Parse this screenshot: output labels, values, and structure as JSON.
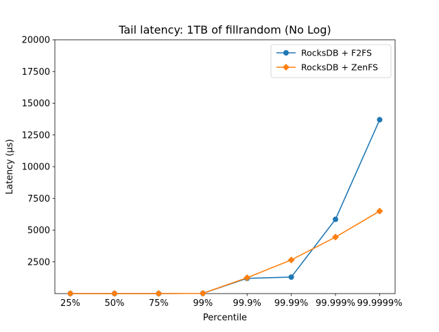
{
  "chart_data": {
    "type": "line",
    "title": "Tail latency: 1TB of fillrandom (No Log)",
    "xlabel": "Percentile",
    "ylabel": "Latency (µs)",
    "categories": [
      "25%",
      "50%",
      "75%",
      "99%",
      "99.9%",
      "99.99%",
      "99.999%",
      "99.9999%"
    ],
    "ylim": [
      0,
      20000
    ],
    "yticks": [
      2500,
      5000,
      7500,
      10000,
      12500,
      15000,
      17500,
      20000
    ],
    "grid": false,
    "legend_position": "top-right",
    "series": [
      {
        "name": "RocksDB + F2FS",
        "color": "#1f77b4",
        "marker": "circle",
        "values": [
          5,
          5,
          5,
          20,
          1200,
          1300,
          5850,
          13700
        ]
      },
      {
        "name": "RocksDB + ZenFS",
        "color": "#ff7f0e",
        "marker": "diamond",
        "values": [
          5,
          5,
          5,
          20,
          1250,
          2650,
          4450,
          6500
        ]
      }
    ]
  }
}
